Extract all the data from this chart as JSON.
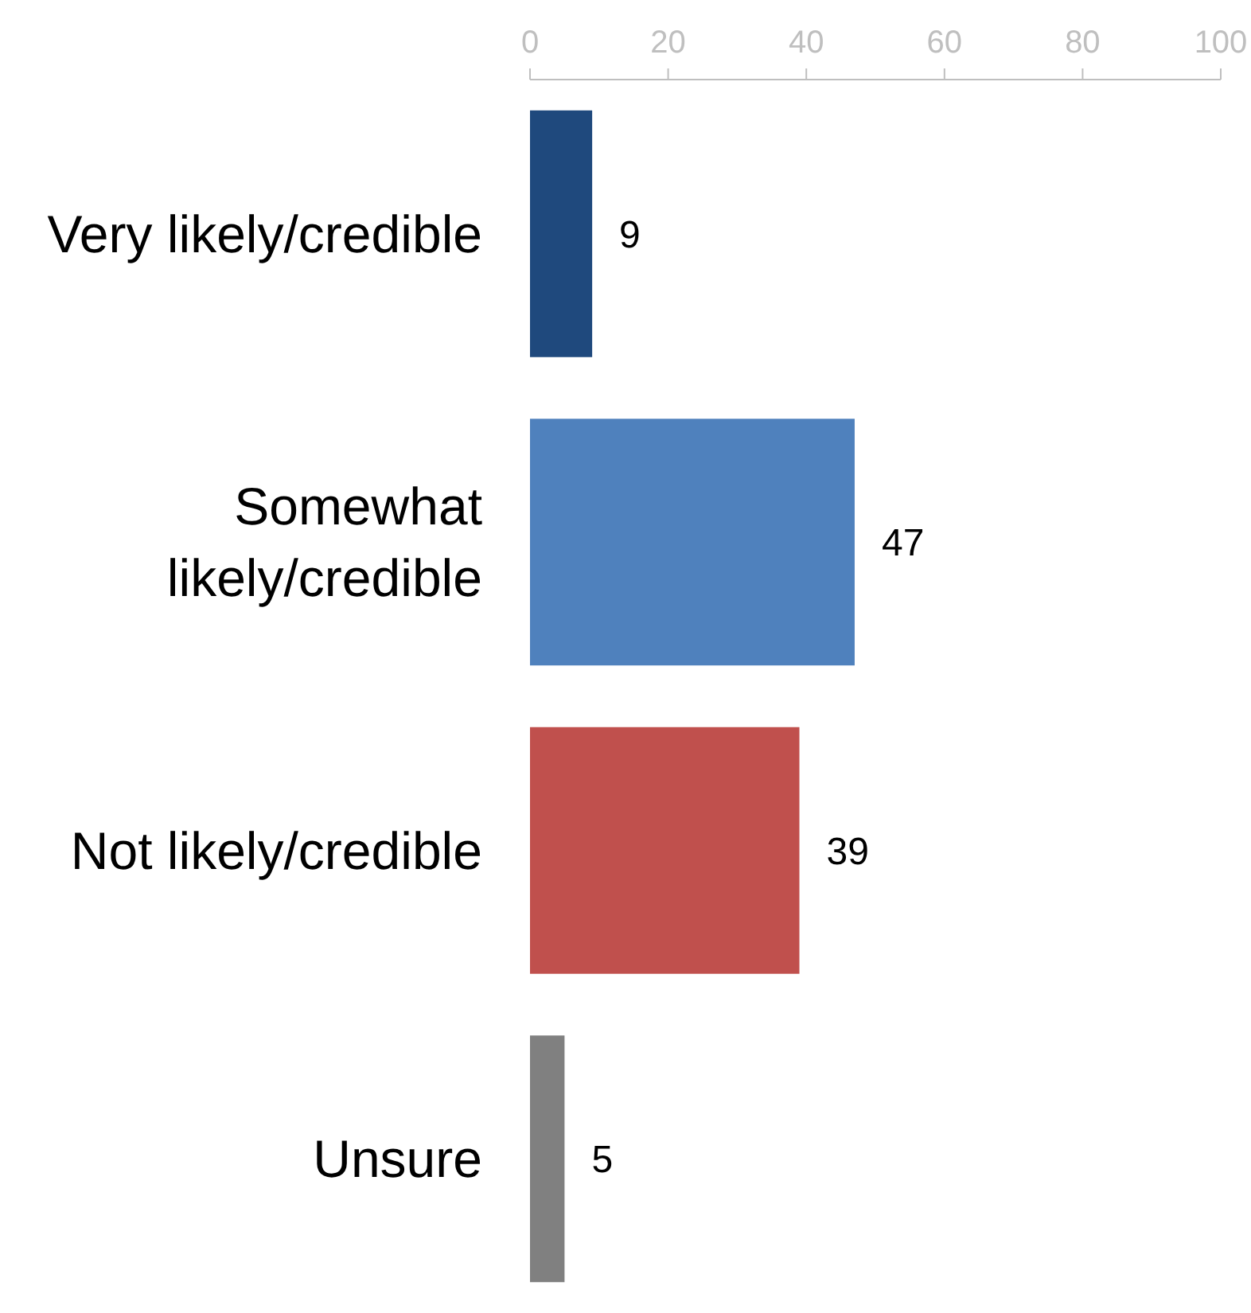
{
  "chart_data": {
    "type": "bar",
    "orientation": "horizontal",
    "categories": [
      "Very likely/credible",
      "Somewhat likely/credible",
      "Not likely/credible",
      "Unsure"
    ],
    "values": [
      9,
      47,
      39,
      5
    ],
    "colors": [
      "#1f497d",
      "#4f81bd",
      "#c0504d",
      "#808080"
    ],
    "xlim": [
      0,
      100
    ],
    "xticks": [
      0,
      20,
      40,
      60,
      80,
      100
    ],
    "data_labels": true
  }
}
